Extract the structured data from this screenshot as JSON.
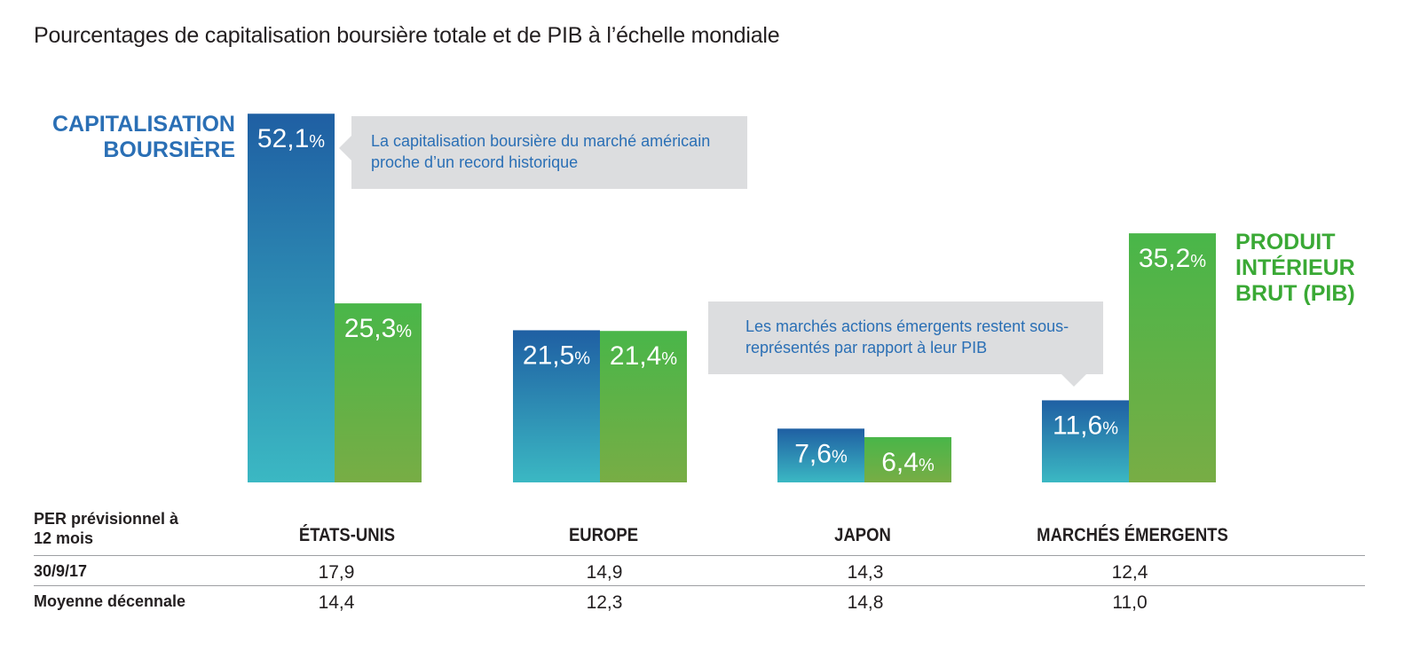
{
  "title": "Pourcentages de capitalisation boursière totale et de PIB à l’échelle mondiale",
  "colors": {
    "market_cap_top": "#1f5fa3",
    "market_cap_bottom": "#3bb8c3",
    "gdp_top": "#49b649",
    "gdp_bottom": "#78ad45",
    "legend_cap": "#2a6fb5",
    "legend_gdp": "#3aa935",
    "callout_bg": "#dcdddf",
    "callout_text": "#2a6fb5"
  },
  "chart_data": {
    "type": "bar",
    "categories": [
      "ÉTATS-UNIS",
      "EUROPE",
      "JAPON",
      "MARCHÉS ÉMERGENTS"
    ],
    "series": [
      {
        "name": "CAPITALISATION BOURSIÈRE",
        "values": [
          52.1,
          21.5,
          7.6,
          11.6
        ],
        "labels": [
          "52,1",
          "21,5",
          "7,6",
          "11,6"
        ]
      },
      {
        "name": "PRODUIT INTÉRIEUR BRUT (PIB)",
        "values": [
          25.3,
          21.4,
          6.4,
          35.2
        ],
        "labels": [
          "25,3",
          "21,4",
          "6,4",
          "35,2"
        ]
      }
    ],
    "unit": "%",
    "legend": {
      "market_cap_lines": [
        "CAPITALISATION",
        "BOURSIÈRE"
      ],
      "gdp_lines": [
        "PRODUIT",
        "INTÉRIEUR",
        "BRUT (PIB)"
      ]
    },
    "annotations": [
      "La capitalisation boursière du marché américain proche d’un record historique",
      "Les marchés actions émergents restent sous-représentés par rapport à leur PIB"
    ]
  },
  "table": {
    "header_label_lines": [
      "PER prévisionnel à",
      "12 mois"
    ],
    "columns": [
      "ÉTATS-UNIS",
      "EUROPE",
      "JAPON",
      "MARCHÉS ÉMERGENTS"
    ],
    "rows": [
      {
        "label": "30/9/17",
        "values": [
          "17,9",
          "14,9",
          "14,3",
          "12,4"
        ]
      },
      {
        "label": "Moyenne décennale",
        "values": [
          "14,4",
          "12,3",
          "14,8",
          "11,0"
        ]
      }
    ]
  }
}
